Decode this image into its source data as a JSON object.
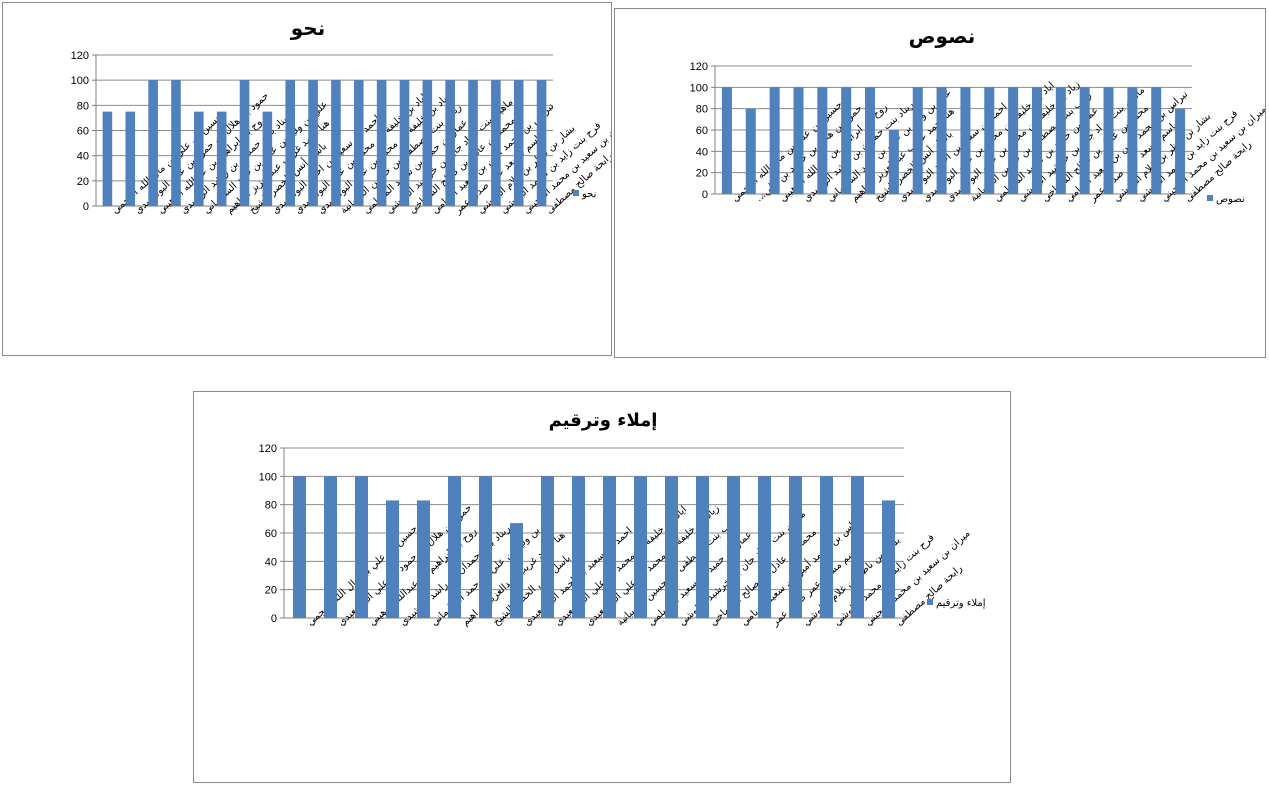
{
  "colors": {
    "bar": "#4f81bd",
    "grid": "#8c8c8c",
    "axis": "#808080"
  },
  "chart_data": [
    {
      "type": "bar",
      "title": "نحو",
      "legend": "نحو",
      "legend_position": "right",
      "ylim": [
        0,
        120
      ],
      "yticks": [
        0,
        20,
        40,
        60,
        80,
        100,
        120
      ],
      "grid": true,
      "categories": [
        "حسين بن علي بن مال الله العجمي",
        "حمود بن هلال بن حمود بن علي البوسعيدي",
        "روح بن ابراهيم بن عبدالله الوهيبي",
        "ريناد بنت حمدان بن راشد الرشيدي",
        "علي بن وليد بن علي بن حمد السليماني",
        "هنا احمد غريب عبدالعزيز ابراهيم",
        "باسل أنس الخضر الشيخ",
        "احمد بن سعيد بن احمد البوسعيدي",
        "اياد بن خليفة بن محمد بن علي البوسعيدي",
        "زياد بن خليفة بن محمد بن علي البوسعيدي",
        "زينب بنت مصطفى بن حسين الشيبانية",
        "عمار بن حميد بن سعيد المسلمي",
        "ماهين بنت مراد جان بن خرشيد البلوشي",
        "محمد بن عادل بن صالح الشماخي",
        "نبراس بن محمد أمين بن سعيد الريامي",
        "باسم مسعد عمر صدق عمر",
        "بشار بن ناظر بن غلام البلوشي",
        "فرح بنت زايد بن محمد البلوشي",
        "ميران بن سعيد بن محمد المجيني",
        "رابحة صالح مصطفى"
      ],
      "values": [
        75,
        75,
        100,
        100,
        75,
        75,
        100,
        75,
        100,
        100,
        100,
        100,
        100,
        100,
        100,
        100,
        100,
        100,
        100,
        100
      ]
    },
    {
      "type": "bar",
      "title": "نصوص",
      "legend": "نصوص",
      "legend_position": "right",
      "ylim": [
        0,
        120
      ],
      "yticks": [
        0,
        20,
        40,
        60,
        80,
        100,
        120
      ],
      "grid": true,
      "categories": [
        "حسين بن علي بن مال الله العجمي",
        "حمود بن هلال بن حمود بن علي...",
        "روح بن ابراهيم بن عبدالله الوهيبي",
        "ريناد بنت حمدان بن راشد الرشيدي",
        "علي بن وليد بن علي بن حمد السليماني",
        "هنا احمد غريب عبدالعزيز ابراهيم",
        "باسل أنس الخضر الشيخ",
        "احمد بن سعيد بن احمد البوسعيدي",
        "اياد بن خليفة بن محمد بن علي البوسعيدي",
        "زياد بن خليفة بن محمد بن علي البوسعيدي",
        "زينب بنت مصطفى بن حسين الشيبانية",
        "عمار بن حميد بن سعيد المسلمي",
        "ماهين بنت مراد جان بن خرشيد البلوشي",
        "محمد بن عادل بن صالح الشماخي",
        "نبراس بن محمد أمين بن سعيد الريامي",
        "باسم مسعد عمر صدق عمر",
        "بشار بن ناظر بن غلام البلوشي",
        "فرح بنت زايد بن محمد البلوشي",
        "ميران بن سعيد بن محمد المجيني",
        "رابحة صالح مصطفى"
      ],
      "values": [
        100,
        80,
        100,
        100,
        100,
        100,
        100,
        60,
        100,
        100,
        100,
        100,
        100,
        100,
        100,
        100,
        100,
        100,
        100,
        80
      ]
    },
    {
      "type": "bar",
      "title": "إملاء وترقيم",
      "legend": "إملاء وترقيم",
      "legend_position": "right",
      "ylim": [
        0,
        120
      ],
      "yticks": [
        0,
        20,
        40,
        60,
        80,
        100,
        120
      ],
      "grid": true,
      "categories": [
        "حسين بن علي بن مال الله العجمي",
        "حمود بن هلال بن حمود بن علي البوسعيدي",
        "روح بن ابراهيم بن عبدالله الوهيبي",
        "ريناد بنت حمدان بن راشد الرشيدي",
        "علي بن وليد بن علي بن حمد السليماني",
        "هنا احمد غريب عبدالعزيز ابراهيم",
        "باسل أنس الخضر الشيخ",
        "احمد بن سعيد بن احمد البوسعيدي",
        "اياد بن خليفة بن محمد بن علي البوسعيدي",
        "زياد بن خليفة بن محمد بن علي البوسعيدي",
        "زينب بنت مصطفى بن حسين الشيبانية",
        "عمار بن حميد بن سعيد المسلمي",
        "ماهين بنت مراد جان بن خرشيد البلوشي",
        "محمد بن عادل بن صالح الشماخي",
        "نبراس بن محمد أمين بن سعيد الريامي",
        "باسم مسعد عمر صدق عمر",
        "بشار بن ناظر بن غلام البلوشي",
        "فرح بنت زايد بن محمد البلوشي",
        "ميران بن سعيد بن محمد المجيني",
        "رابحة صالح مصطفى"
      ],
      "values": [
        100,
        100,
        100,
        83,
        83,
        100,
        100,
        67,
        100,
        100,
        100,
        100,
        100,
        100,
        100,
        100,
        100,
        100,
        100,
        83
      ]
    }
  ]
}
